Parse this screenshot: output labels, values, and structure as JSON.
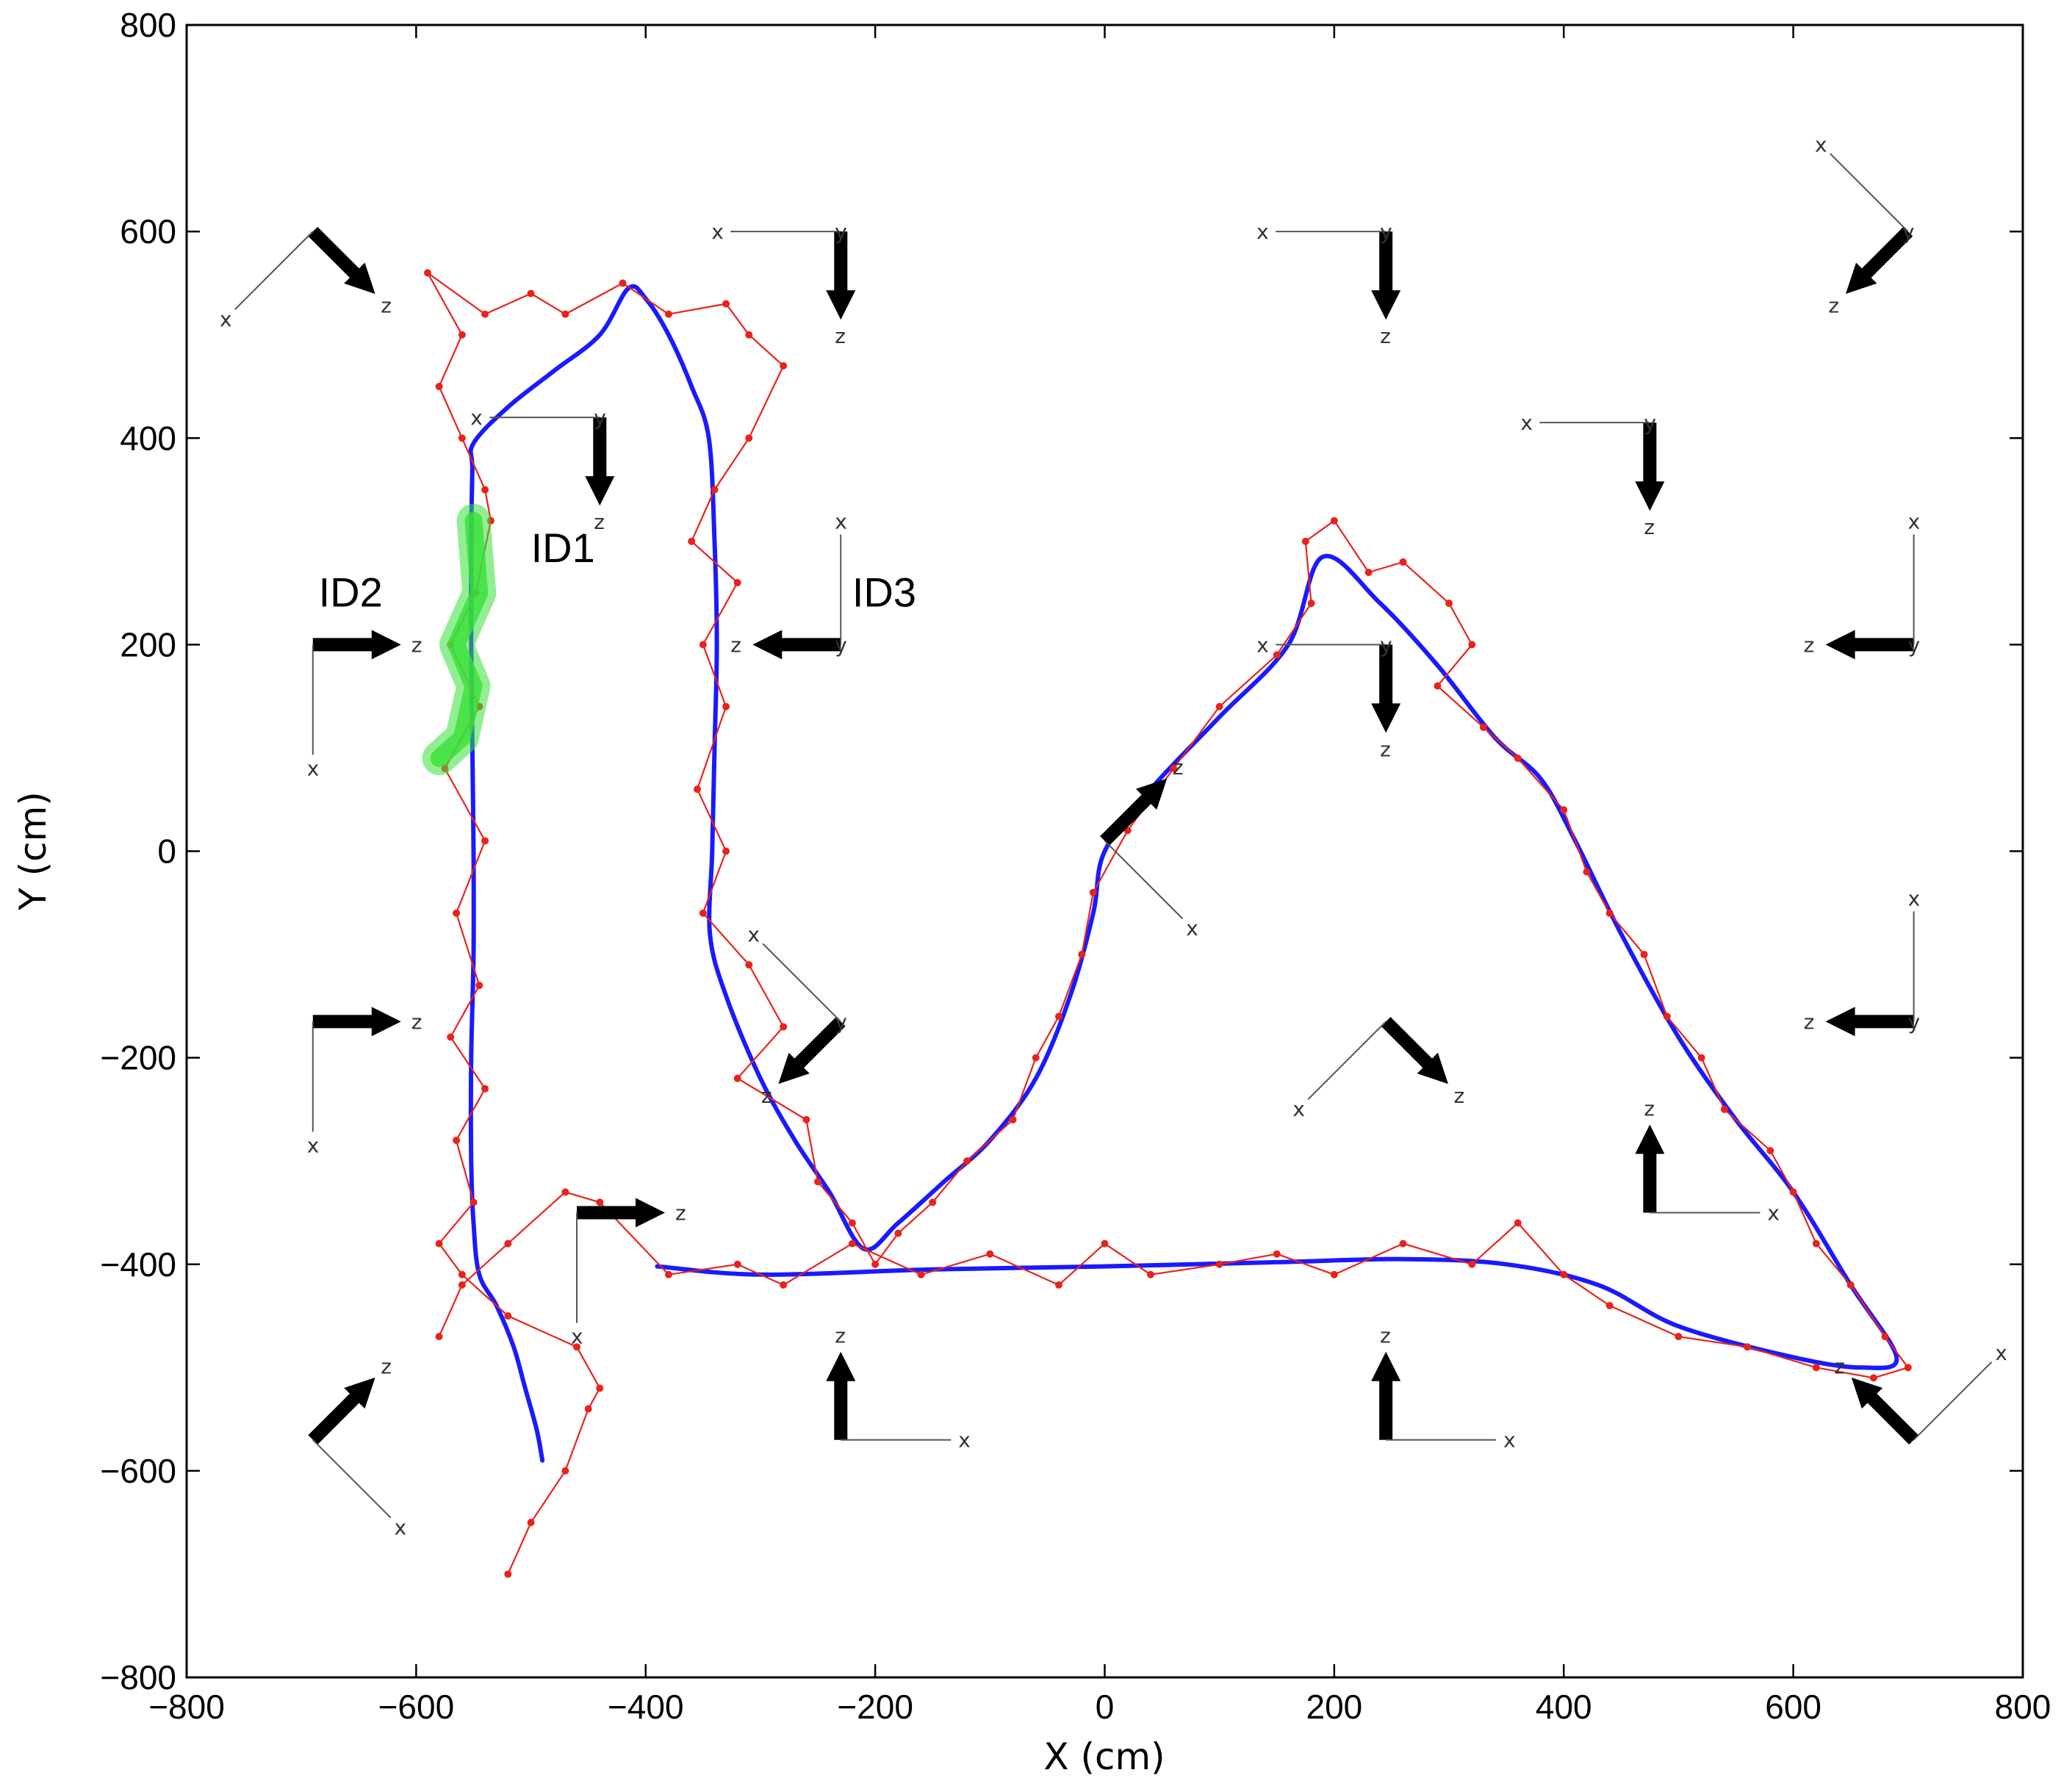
{
  "chart_data": {
    "type": "line",
    "xlabel": "X (cm)",
    "ylabel": "Y (cm)",
    "xlim": [
      -800,
      800
    ],
    "ylim": [
      -800,
      800
    ],
    "xticks": [
      -800,
      -600,
      -400,
      -200,
      0,
      200,
      400,
      600,
      800
    ],
    "yticks": [
      -800,
      -600,
      -400,
      -200,
      0,
      200,
      400,
      600,
      800
    ],
    "xtick_labels": [
      "−800",
      "−600",
      "−400",
      "−200",
      "0",
      "200",
      "400",
      "600",
      "800"
    ],
    "ytick_labels": [
      "−800",
      "−600",
      "−400",
      "−200",
      "0",
      "200",
      "400",
      "600",
      "800"
    ],
    "grid": false,
    "annotations": [
      {
        "text": "ID1",
        "x": -500,
        "y": 280
      },
      {
        "text": "ID2",
        "x": -685,
        "y": 237
      },
      {
        "text": "ID3",
        "x": -220,
        "y": 237
      }
    ],
    "series": [
      {
        "style": "smooth-line",
        "color": "#1a1aff",
        "points": [
          [
            -490,
            -590
          ],
          [
            -495,
            -560
          ],
          [
            -505,
            -520
          ],
          [
            -515,
            -480
          ],
          [
            -530,
            -440
          ],
          [
            -545,
            -410
          ],
          [
            -550,
            -360
          ],
          [
            -552,
            -300
          ],
          [
            -552,
            -200
          ],
          [
            -550,
            -100
          ],
          [
            -550,
            0
          ],
          [
            -551,
            100
          ],
          [
            -552,
            200
          ],
          [
            -552,
            300
          ],
          [
            -551,
            370
          ],
          [
            -550,
            395
          ],
          [
            -520,
            430
          ],
          [
            -480,
            465
          ],
          [
            -440,
            500
          ],
          [
            -415,
            545
          ],
          [
            -400,
            535
          ],
          [
            -380,
            500
          ],
          [
            -360,
            450
          ],
          [
            -345,
            400
          ],
          [
            -340,
            300
          ],
          [
            -338,
            200
          ],
          [
            -340,
            100
          ],
          [
            -342,
            0
          ],
          [
            -344,
            -80
          ],
          [
            -330,
            -140
          ],
          [
            -300,
            -220
          ],
          [
            -270,
            -280
          ],
          [
            -240,
            -330
          ],
          [
            -210,
            -385
          ],
          [
            -180,
            -360
          ],
          [
            -140,
            -320
          ],
          [
            -100,
            -280
          ],
          [
            -60,
            -220
          ],
          [
            -30,
            -140
          ],
          [
            -10,
            -60
          ],
          [
            0,
            0
          ],
          [
            40,
            60
          ],
          [
            100,
            130
          ],
          [
            160,
            200
          ],
          [
            190,
            285
          ],
          [
            240,
            240
          ],
          [
            290,
            180
          ],
          [
            340,
            110
          ],
          [
            380,
            70
          ],
          [
            410,
            10
          ],
          [
            450,
            -80
          ],
          [
            500,
            -180
          ],
          [
            550,
            -260
          ],
          [
            600,
            -330
          ],
          [
            650,
            -420
          ],
          [
            690,
            -490
          ],
          [
            660,
            -500
          ],
          [
            600,
            -490
          ],
          [
            500,
            -460
          ],
          [
            430,
            -420
          ],
          [
            350,
            -400
          ],
          [
            260,
            -395
          ],
          [
            150,
            -398
          ],
          [
            0,
            -402
          ],
          [
            -150,
            -405
          ],
          [
            -300,
            -410
          ],
          [
            -390,
            -402
          ]
        ]
      },
      {
        "style": "noisy-markers",
        "color": "#e8231c",
        "points": [
          [
            -520,
            -700
          ],
          [
            -500,
            -650
          ],
          [
            -470,
            -600
          ],
          [
            -450,
            -540
          ],
          [
            -440,
            -520
          ],
          [
            -460,
            -480
          ],
          [
            -520,
            -450
          ],
          [
            -560,
            -410
          ],
          [
            -580,
            -380
          ],
          [
            -550,
            -340
          ],
          [
            -565,
            -280
          ],
          [
            -540,
            -230
          ],
          [
            -570,
            -180
          ],
          [
            -545,
            -130
          ],
          [
            -565,
            -60
          ],
          [
            -540,
            10
          ],
          [
            -575,
            80
          ],
          [
            -545,
            140
          ],
          [
            -570,
            200
          ],
          [
            -548,
            250
          ],
          [
            -535,
            320
          ],
          [
            -540,
            350
          ],
          [
            -560,
            400
          ],
          [
            -580,
            450
          ],
          [
            -560,
            500
          ],
          [
            -590,
            560
          ],
          [
            -540,
            520
          ],
          [
            -500,
            540
          ],
          [
            -470,
            520
          ],
          [
            -420,
            550
          ],
          [
            -380,
            520
          ],
          [
            -330,
            530
          ],
          [
            -310,
            500
          ],
          [
            -280,
            470
          ],
          [
            -310,
            400
          ],
          [
            -340,
            350
          ],
          [
            -360,
            300
          ],
          [
            -320,
            260
          ],
          [
            -350,
            200
          ],
          [
            -330,
            140
          ],
          [
            -355,
            60
          ],
          [
            -330,
            0
          ],
          [
            -350,
            -60
          ],
          [
            -310,
            -110
          ],
          [
            -280,
            -170
          ],
          [
            -320,
            -220
          ],
          [
            -260,
            -260
          ],
          [
            -250,
            -320
          ],
          [
            -220,
            -360
          ],
          [
            -200,
            -400
          ],
          [
            -180,
            -370
          ],
          [
            -150,
            -340
          ],
          [
            -120,
            -300
          ],
          [
            -80,
            -260
          ],
          [
            -60,
            -200
          ],
          [
            -40,
            -160
          ],
          [
            -20,
            -100
          ],
          [
            -10,
            -40
          ],
          [
            20,
            20
          ],
          [
            60,
            80
          ],
          [
            100,
            140
          ],
          [
            150,
            190
          ],
          [
            180,
            240
          ],
          [
            175,
            300
          ],
          [
            200,
            320
          ],
          [
            230,
            270
          ],
          [
            260,
            280
          ],
          [
            300,
            240
          ],
          [
            320,
            200
          ],
          [
            290,
            160
          ],
          [
            330,
            120
          ],
          [
            360,
            90
          ],
          [
            400,
            40
          ],
          [
            420,
            -20
          ],
          [
            440,
            -60
          ],
          [
            470,
            -100
          ],
          [
            490,
            -160
          ],
          [
            520,
            -200
          ],
          [
            540,
            -250
          ],
          [
            580,
            -290
          ],
          [
            600,
            -330
          ],
          [
            620,
            -380
          ],
          [
            650,
            -420
          ],
          [
            680,
            -470
          ],
          [
            700,
            -500
          ],
          [
            670,
            -510
          ],
          [
            620,
            -500
          ],
          [
            560,
            -480
          ],
          [
            500,
            -470
          ],
          [
            440,
            -440
          ],
          [
            400,
            -410
          ],
          [
            360,
            -360
          ],
          [
            320,
            -400
          ],
          [
            260,
            -380
          ],
          [
            200,
            -410
          ],
          [
            150,
            -390
          ],
          [
            100,
            -400
          ],
          [
            40,
            -410
          ],
          [
            0,
            -380
          ],
          [
            -40,
            -420
          ],
          [
            -100,
            -390
          ],
          [
            -160,
            -410
          ],
          [
            -220,
            -380
          ],
          [
            -280,
            -420
          ],
          [
            -320,
            -400
          ],
          [
            -380,
            -410
          ],
          [
            -440,
            -340
          ],
          [
            -470,
            -330
          ],
          [
            -520,
            -380
          ],
          [
            -560,
            -420
          ],
          [
            -580,
            -470
          ]
        ]
      },
      {
        "style": "band",
        "color": "#38e038",
        "points": [
          [
            -580,
            90
          ],
          [
            -560,
            110
          ],
          [
            -550,
            160
          ],
          [
            -565,
            200
          ],
          [
            -545,
            250
          ],
          [
            -550,
            320
          ]
        ]
      }
    ],
    "cameras": [
      {
        "x": -690,
        "y": 600,
        "arrow": "down-right",
        "axes": [
          "x",
          "z"
        ]
      },
      {
        "x": -440,
        "y": 420,
        "arrow": "down",
        "axes": [
          "x",
          "y",
          "z"
        ]
      },
      {
        "x": -230,
        "y": 600,
        "arrow": "down",
        "axes": [
          "x",
          "y",
          "z"
        ]
      },
      {
        "x": 245,
        "y": 600,
        "arrow": "down",
        "axes": [
          "x",
          "y",
          "z"
        ]
      },
      {
        "x": 700,
        "y": 600,
        "arrow": "down-left",
        "axes": [
          "x",
          "y",
          "z"
        ]
      },
      {
        "x": 475,
        "y": 415,
        "arrow": "down",
        "axes": [
          "x",
          "y",
          "z"
        ]
      },
      {
        "x": -690,
        "y": 200,
        "arrow": "right",
        "axes": [
          "x",
          "z"
        ]
      },
      {
        "x": -230,
        "y": 200,
        "arrow": "left",
        "axes": [
          "x",
          "y",
          "z"
        ]
      },
      {
        "x": 245,
        "y": 200,
        "arrow": "down",
        "axes": [
          "x",
          "y",
          "z"
        ]
      },
      {
        "x": 705,
        "y": 200,
        "arrow": "left",
        "axes": [
          "x",
          "y",
          "z"
        ]
      },
      {
        "x": 0,
        "y": 10,
        "arrow": "up-right",
        "axes": [
          "x",
          "z"
        ]
      },
      {
        "x": -690,
        "y": -165,
        "arrow": "right",
        "axes": [
          "x",
          "z"
        ]
      },
      {
        "x": -230,
        "y": -165,
        "arrow": "down-left",
        "axes": [
          "x",
          "y",
          "z"
        ]
      },
      {
        "x": 245,
        "y": -165,
        "arrow": "down-right",
        "axes": [
          "x",
          "z"
        ]
      },
      {
        "x": 705,
        "y": -165,
        "arrow": "left",
        "axes": [
          "x",
          "y",
          "z"
        ]
      },
      {
        "x": 475,
        "y": -350,
        "arrow": "up",
        "axes": [
          "x",
          "z"
        ]
      },
      {
        "x": -460,
        "y": -350,
        "arrow": "right",
        "axes": [
          "x",
          "z"
        ]
      },
      {
        "x": -690,
        "y": -570,
        "arrow": "up-right",
        "axes": [
          "x",
          "z"
        ]
      },
      {
        "x": -230,
        "y": -570,
        "arrow": "up",
        "axes": [
          "x",
          "z"
        ]
      },
      {
        "x": 245,
        "y": -570,
        "arrow": "up",
        "axes": [
          "x",
          "z"
        ]
      },
      {
        "x": 705,
        "y": -570,
        "arrow": "up-left",
        "axes": [
          "x",
          "z"
        ]
      }
    ]
  }
}
